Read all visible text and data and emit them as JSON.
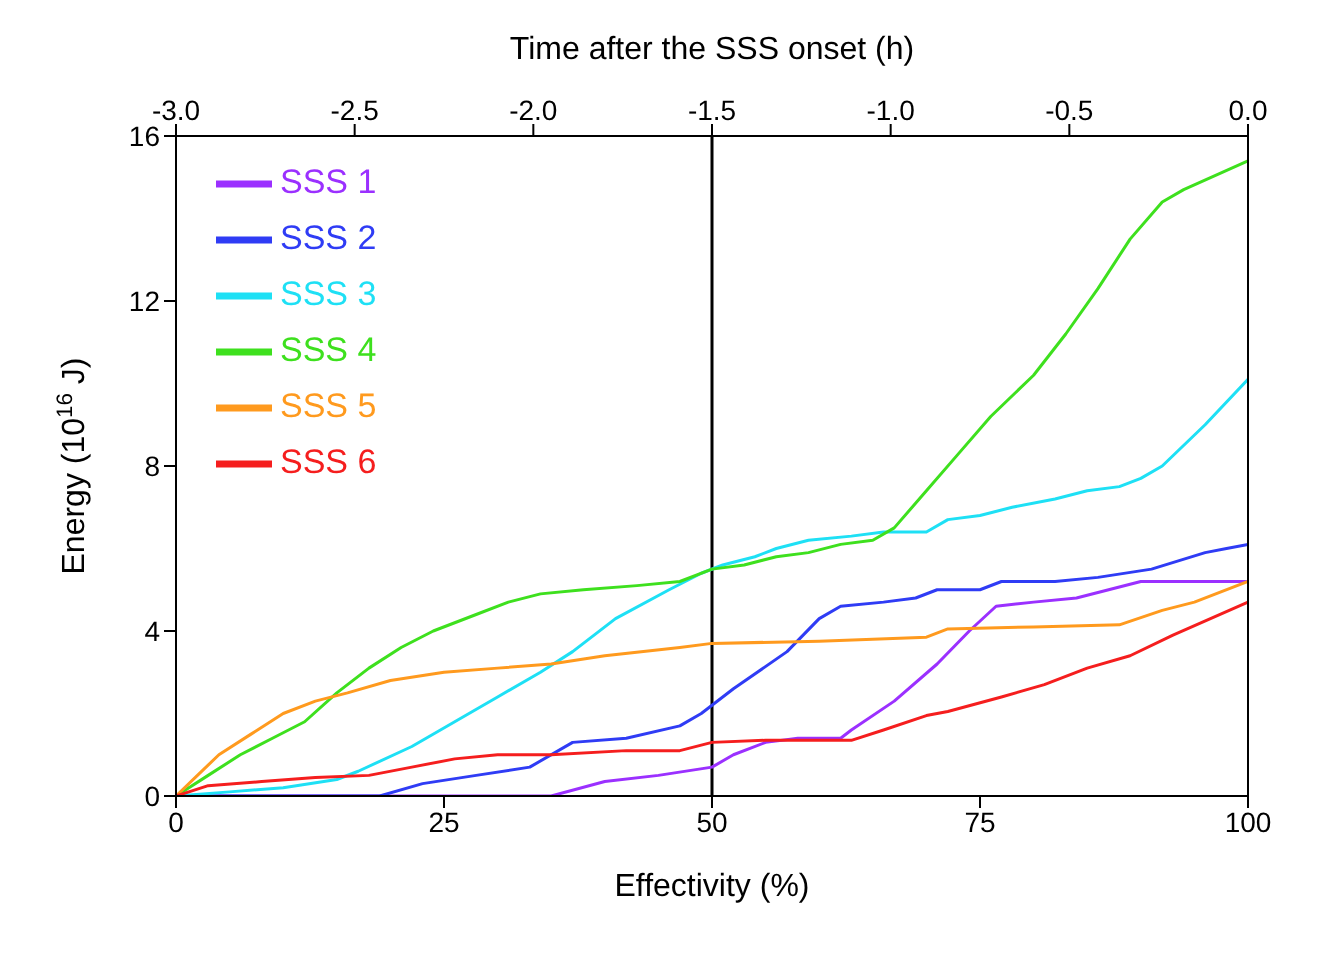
{
  "chart_data": {
    "type": "line",
    "xlabel": "Effectivity (%)",
    "ylabel": "Energy (10$^{16}$ J)",
    "x2label": "Time after the SSS onset (h)",
    "xlim": [
      0,
      100
    ],
    "xticks": [
      0,
      25,
      50,
      75,
      100
    ],
    "ylim": [
      0,
      16
    ],
    "yticks": [
      0,
      4,
      8,
      12,
      16
    ],
    "x2lim": [
      -3,
      0
    ],
    "x2ticks": [
      {
        "value": -3,
        "label": "-3.0"
      },
      {
        "value": -2.5,
        "label": "-2.5"
      },
      {
        "value": -2,
        "label": "-2.0"
      },
      {
        "value": -1.5,
        "label": "-1.5"
      },
      {
        "value": -1,
        "label": "-1.0"
      },
      {
        "value": -0.5,
        "label": "-0.5"
      },
      {
        "value": 0,
        "label": "0.0"
      }
    ],
    "ref_lines": [
      {
        "axis": "x",
        "value": 50,
        "color": "#000000"
      }
    ],
    "legend": "top left",
    "marker": "none",
    "line_style": "solid",
    "series": [
      {
        "name": "SSS 1",
        "color": "#9b30ff",
        "x": [
          0,
          35,
          40,
          45,
          50,
          52,
          55,
          58,
          62,
          63,
          67,
          71,
          74,
          76.5,
          80,
          84,
          87,
          90,
          100
        ],
        "values": [
          0,
          0,
          0.35,
          0.5,
          0.7,
          1.0,
          1.3,
          1.4,
          1.4,
          1.6,
          2.3,
          3.2,
          4.0,
          4.6,
          4.7,
          4.8,
          5.0,
          5.2,
          5.2
        ]
      },
      {
        "name": "SSS 2",
        "color": "#2f3cf5",
        "x": [
          0,
          19,
          23,
          28,
          33,
          37,
          42,
          47,
          49,
          52,
          57,
          60,
          62,
          66,
          69,
          71,
          75,
          77,
          82,
          86,
          91,
          96,
          98,
          100
        ],
        "values": [
          0,
          0,
          0.3,
          0.5,
          0.7,
          1.3,
          1.4,
          1.7,
          2.0,
          2.6,
          3.5,
          4.3,
          4.6,
          4.7,
          4.8,
          5.0,
          5.0,
          5.2,
          5.2,
          5.3,
          5.5,
          5.9,
          6.0,
          6.1
        ]
      },
      {
        "name": "SSS 3",
        "color": "#1ee0f5",
        "x": [
          0,
          5,
          10,
          15,
          17,
          22,
          26,
          30,
          34,
          37,
          41,
          46,
          49,
          51,
          54,
          56,
          59,
          63,
          66,
          70,
          72,
          75,
          78,
          82,
          85,
          88,
          90,
          92,
          96,
          100
        ],
        "values": [
          0,
          0.1,
          0.2,
          0.4,
          0.6,
          1.2,
          1.8,
          2.4,
          3.0,
          3.5,
          4.3,
          5.0,
          5.4,
          5.6,
          5.8,
          6.0,
          6.2,
          6.3,
          6.4,
          6.4,
          6.7,
          6.8,
          7.0,
          7.2,
          7.4,
          7.5,
          7.7,
          8.0,
          9.0,
          10.1
        ]
      },
      {
        "name": "SSS 4",
        "color": "#3ee01e",
        "x": [
          0,
          3,
          6,
          9,
          12,
          15,
          18,
          21,
          24,
          28,
          31,
          34,
          38,
          43,
          47,
          50,
          53,
          56,
          59,
          62,
          65,
          67,
          70,
          73,
          76,
          80,
          83,
          86,
          89,
          92,
          94,
          100
        ],
        "values": [
          0,
          0.5,
          1.0,
          1.4,
          1.8,
          2.5,
          3.1,
          3.6,
          4.0,
          4.4,
          4.7,
          4.9,
          5.0,
          5.1,
          5.2,
          5.5,
          5.6,
          5.8,
          5.9,
          6.1,
          6.2,
          6.5,
          7.4,
          8.3,
          9.2,
          10.2,
          11.2,
          12.3,
          13.5,
          14.4,
          14.7,
          15.4
        ]
      },
      {
        "name": "SSS 5",
        "color": "#ff9a1e",
        "x": [
          0,
          2,
          4,
          7,
          10,
          13,
          16,
          20,
          25,
          30,
          35,
          40,
          47,
          50,
          60,
          65,
          70,
          72,
          80,
          88,
          92,
          95,
          100
        ],
        "values": [
          0,
          0.5,
          1.0,
          1.5,
          2.0,
          2.3,
          2.5,
          2.8,
          3.0,
          3.1,
          3.2,
          3.4,
          3.6,
          3.7,
          3.75,
          3.8,
          3.85,
          4.05,
          4.1,
          4.15,
          4.5,
          4.7,
          5.2
        ]
      },
      {
        "name": "SSS 6",
        "color": "#f51e1e",
        "x": [
          0,
          3,
          8,
          13,
          18,
          22,
          26,
          30,
          35,
          42,
          47,
          50,
          55,
          63,
          66,
          70,
          72,
          77,
          81,
          85,
          89,
          93,
          100
        ],
        "values": [
          0,
          0.25,
          0.35,
          0.45,
          0.5,
          0.7,
          0.9,
          1.0,
          1.0,
          1.1,
          1.1,
          1.3,
          1.35,
          1.35,
          1.6,
          1.95,
          2.05,
          2.4,
          2.7,
          3.1,
          3.4,
          3.9,
          4.7
        ]
      }
    ]
  }
}
